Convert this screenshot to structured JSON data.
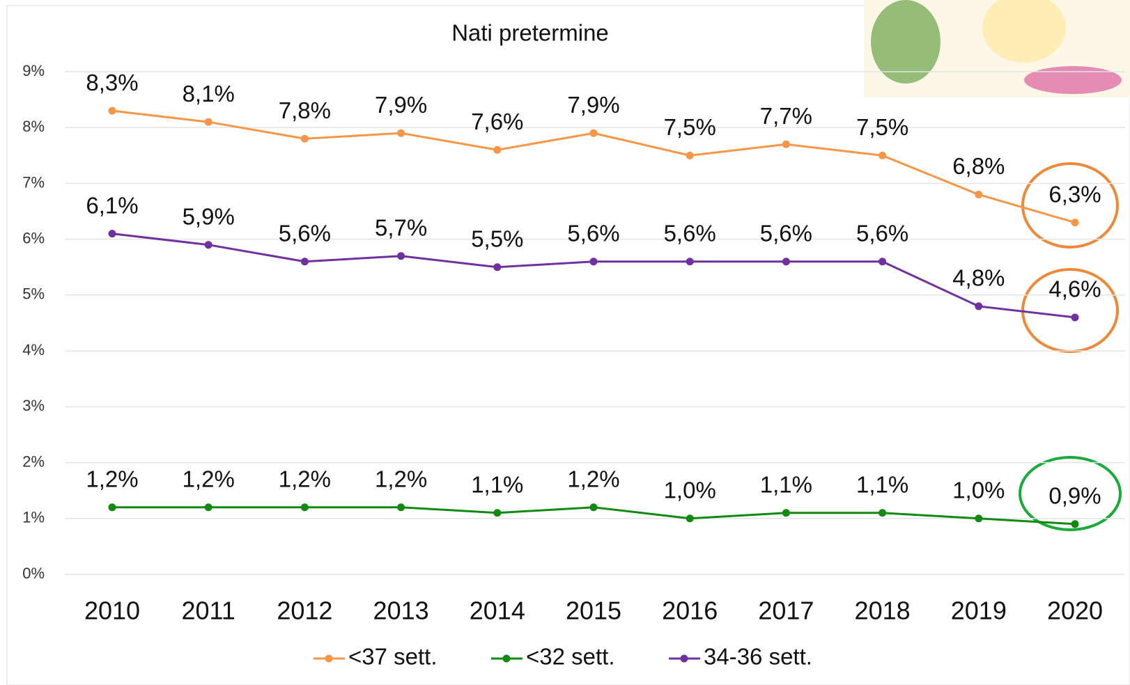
{
  "chart_data": {
    "type": "line",
    "title": "Nati pretermine",
    "categories": [
      "2010",
      "2011",
      "2012",
      "2013",
      "2014",
      "2015",
      "2016",
      "2017",
      "2018",
      "2019",
      "2020"
    ],
    "series": [
      {
        "name": "<37 sett.",
        "color": "#f79646",
        "values": [
          8.3,
          8.1,
          7.8,
          7.9,
          7.6,
          7.9,
          7.5,
          7.7,
          7.5,
          6.8,
          6.3
        ],
        "value_labels": [
          "8,3%",
          "8,1%",
          "7,8%",
          "7,9%",
          "7,6%",
          "7,9%",
          "7,5%",
          "7,7%",
          "7,5%",
          "6,8%",
          "6,3%"
        ]
      },
      {
        "name": "<32 sett.",
        "color": "#128a12",
        "values": [
          1.2,
          1.2,
          1.2,
          1.2,
          1.1,
          1.2,
          1.0,
          1.1,
          1.1,
          1.0,
          0.9
        ],
        "value_labels": [
          "1,2%",
          "1,2%",
          "1,2%",
          "1,2%",
          "1,1%",
          "1,2%",
          "1,0%",
          "1,1%",
          "1,1%",
          "1,0%",
          "0,9%"
        ]
      },
      {
        "name": "34-36 sett.",
        "color": "#7030a0",
        "values": [
          6.1,
          5.9,
          5.6,
          5.7,
          5.5,
          5.6,
          5.6,
          5.6,
          5.6,
          4.8,
          4.6
        ],
        "value_labels": [
          "6,1%",
          "5,9%",
          "5,6%",
          "5,7%",
          "5,5%",
          "5,6%",
          "5,6%",
          "5,6%",
          "5,6%",
          "4,8%",
          "4,6%"
        ]
      }
    ],
    "ylim": [
      0,
      9
    ],
    "yticks": [
      {
        "value": 0,
        "label": "0%"
      },
      {
        "value": 1,
        "label": "1%"
      },
      {
        "value": 2,
        "label": "2%"
      },
      {
        "value": 3,
        "label": "3%"
      },
      {
        "value": 4,
        "label": "4%"
      },
      {
        "value": 5,
        "label": "5%"
      },
      {
        "value": 6,
        "label": "6%"
      },
      {
        "value": 7,
        "label": "7%"
      },
      {
        "value": 8,
        "label": "8%"
      },
      {
        "value": 9,
        "label": "9%"
      }
    ],
    "grid": true,
    "legend": "bottom"
  }
}
